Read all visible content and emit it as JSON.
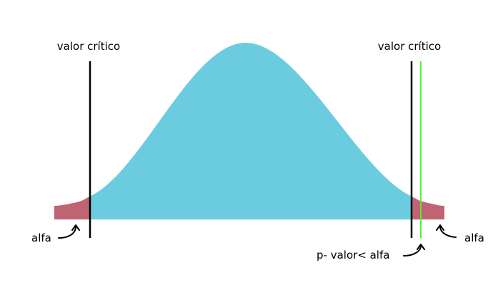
{
  "labels": {
    "critical_left": "valor crítico",
    "critical_right": "valor crítico",
    "alpha_left": "alfa",
    "alpha_right": "alfa",
    "p_value": "p- valor< alfa"
  },
  "colors": {
    "curve_fill": "#6cccdf",
    "tail_fill": "#c06473",
    "critical_line": "#000000",
    "p_value_line": "#55ee33",
    "background": "#ffffff"
  }
}
